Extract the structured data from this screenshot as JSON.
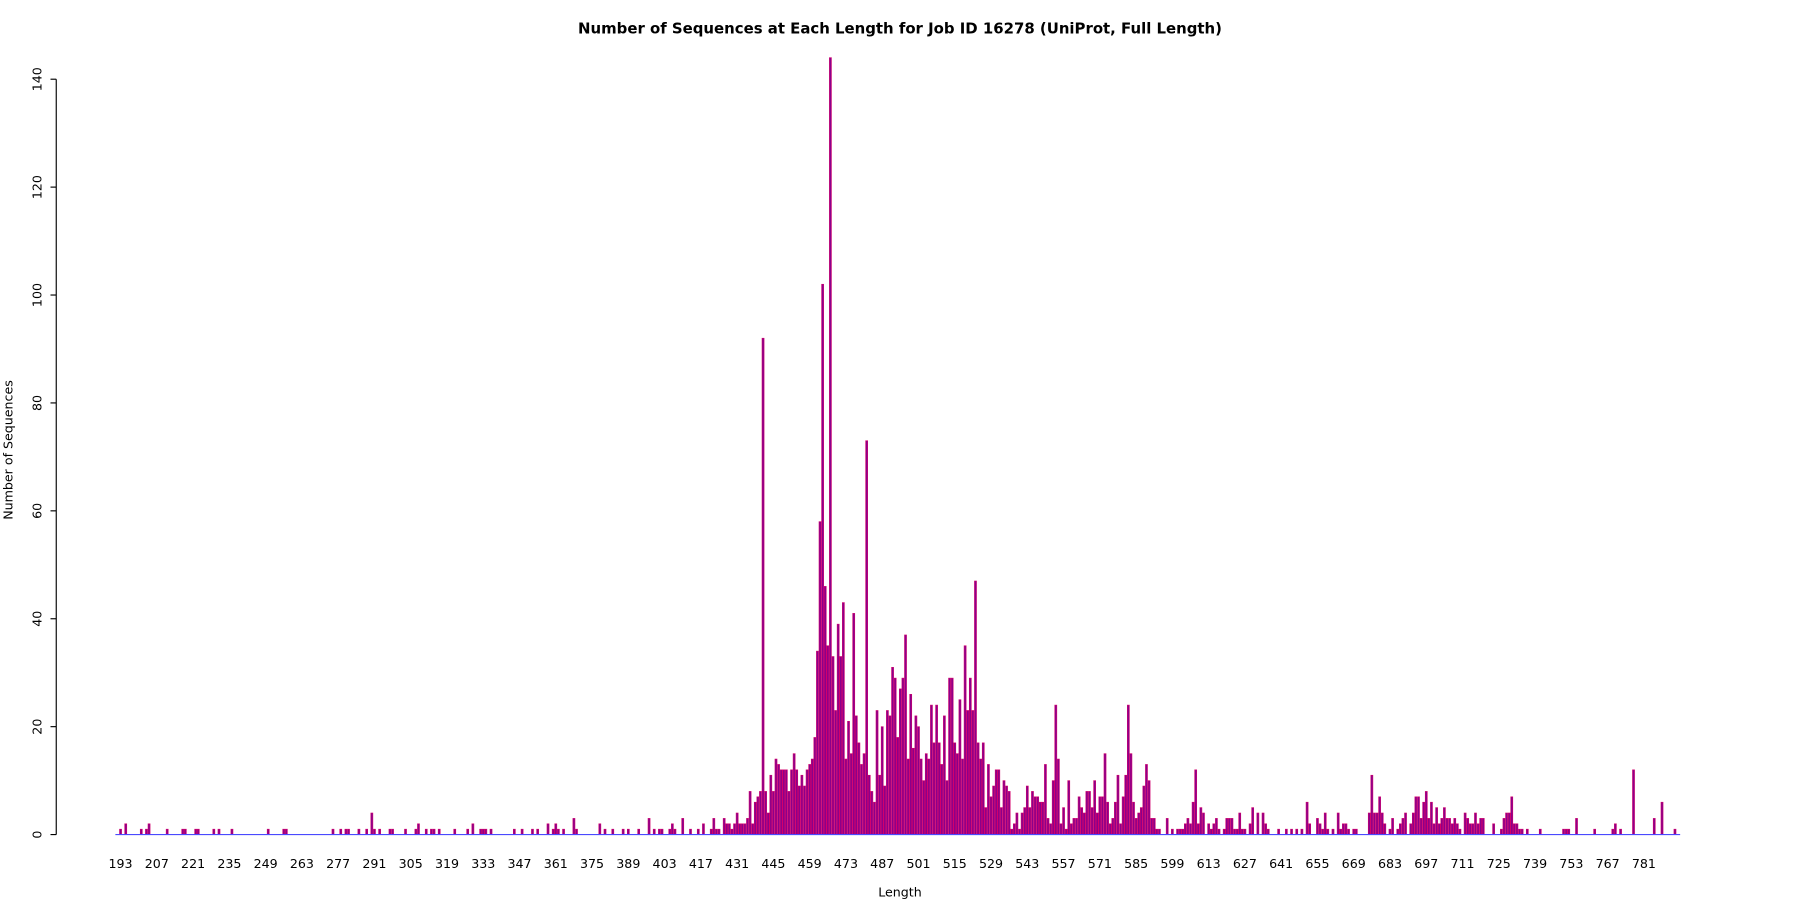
{
  "chart_data": {
    "type": "bar",
    "title": "Number of Sequences at Each Length for Job ID 16278 (UniProt, Full Length)",
    "x_label": "Length",
    "y_label": "Number of Sequences",
    "color": "#8b008b",
    "edgecolor": "#d4006a",
    "baseline_color": "#4a4aff",
    "xlim": [
      191,
      795
    ],
    "ylim": [
      0,
      140
    ],
    "xticks": [
      193,
      207,
      221,
      235,
      249,
      263,
      277,
      291,
      305,
      319,
      333,
      347,
      361,
      375,
      389,
      403,
      417,
      431,
      445,
      459,
      473,
      487,
      501,
      515,
      529,
      543,
      557,
      571,
      585,
      599,
      613,
      627,
      641,
      655,
      669,
      683,
      697,
      711,
      725,
      739,
      753,
      767,
      781
    ],
    "yticks": [
      0,
      20,
      40,
      60,
      80,
      100,
      120,
      140
    ],
    "x": [
      193,
      195,
      201,
      203,
      204,
      211,
      217,
      218,
      222,
      223,
      229,
      231,
      236,
      250,
      256,
      257,
      275,
      278,
      280,
      281,
      285,
      288,
      290,
      291,
      293,
      297,
      298,
      303,
      307,
      308,
      311,
      313,
      314,
      316,
      322,
      327,
      329,
      332,
      333,
      334,
      336,
      345,
      348,
      352,
      354,
      358,
      360,
      361,
      362,
      364,
      368,
      369,
      378,
      380,
      383,
      387,
      389,
      393,
      397,
      399,
      401,
      402,
      405,
      406,
      407,
      410,
      413,
      416,
      418,
      421,
      422,
      423,
      424,
      426,
      427,
      428,
      429,
      430,
      431,
      432,
      433,
      434,
      435,
      436,
      437,
      438,
      439,
      440,
      441,
      442,
      443,
      444,
      445,
      446,
      447,
      448,
      449,
      450,
      451,
      452,
      453,
      454,
      455,
      456,
      457,
      458,
      459,
      460,
      461,
      462,
      463,
      464,
      465,
      466,
      467,
      468,
      469,
      470,
      471,
      472,
      473,
      474,
      475,
      476,
      477,
      478,
      479,
      480,
      481,
      482,
      483,
      484,
      485,
      486,
      487,
      488,
      489,
      490,
      491,
      492,
      493,
      494,
      495,
      496,
      497,
      498,
      499,
      500,
      501,
      502,
      503,
      504,
      505,
      506,
      507,
      508,
      509,
      510,
      511,
      512,
      513,
      514,
      515,
      516,
      517,
      518,
      519,
      520,
      521,
      522,
      523,
      524,
      525,
      526,
      527,
      528,
      529,
      530,
      531,
      532,
      533,
      534,
      535,
      536,
      537,
      538,
      539,
      540,
      541,
      542,
      543,
      544,
      545,
      546,
      547,
      548,
      549,
      550,
      551,
      552,
      553,
      554,
      555,
      556,
      557,
      558,
      559,
      560,
      561,
      562,
      563,
      564,
      565,
      566,
      567,
      568,
      569,
      570,
      571,
      572,
      573,
      574,
      575,
      576,
      577,
      578,
      579,
      580,
      581,
      582,
      583,
      584,
      585,
      586,
      587,
      588,
      589,
      590,
      591,
      592,
      593,
      594,
      597,
      599,
      601,
      602,
      603,
      604,
      605,
      606,
      607,
      608,
      609,
      610,
      611,
      613,
      614,
      615,
      616,
      617,
      619,
      620,
      621,
      622,
      623,
      624,
      625,
      626,
      627,
      629,
      630,
      632,
      634,
      635,
      636,
      640,
      643,
      645,
      647,
      649,
      651,
      652,
      655,
      656,
      657,
      658,
      659,
      661,
      663,
      664,
      665,
      666,
      667,
      669,
      670,
      675,
      676,
      677,
      678,
      679,
      680,
      681,
      683,
      684,
      686,
      687,
      688,
      689,
      691,
      692,
      693,
      694,
      695,
      696,
      697,
      698,
      699,
      700,
      701,
      702,
      703,
      704,
      705,
      706,
      707,
      708,
      709,
      710,
      712,
      713,
      714,
      715,
      716,
      717,
      718,
      719,
      723,
      726,
      727,
      728,
      729,
      730,
      731,
      732,
      733,
      734,
      736,
      741,
      750,
      751,
      752,
      755,
      762,
      769,
      770,
      772,
      777,
      785,
      788,
      793
    ],
    "values": [
      1,
      2,
      1,
      1,
      2,
      1,
      1,
      1,
      1,
      1,
      1,
      1,
      1,
      1,
      1,
      1,
      1,
      1,
      1,
      1,
      1,
      1,
      4,
      1,
      1,
      1,
      1,
      1,
      1,
      2,
      1,
      1,
      1,
      1,
      1,
      1,
      2,
      1,
      1,
      1,
      1,
      1,
      1,
      1,
      1,
      2,
      1,
      2,
      1,
      1,
      3,
      1,
      2,
      1,
      1,
      1,
      1,
      1,
      3,
      1,
      1,
      1,
      1,
      2,
      1,
      3,
      1,
      1,
      2,
      1,
      3,
      1,
      1,
      3,
      2,
      2,
      1,
      2,
      4,
      2,
      2,
      2,
      3,
      8,
      2,
      6,
      7,
      8,
      92,
      8,
      4,
      11,
      8,
      14,
      13,
      12,
      12,
      12,
      8,
      12,
      15,
      12,
      9,
      11,
      9,
      12,
      13,
      14,
      18,
      34,
      58,
      102,
      46,
      35,
      144,
      33,
      23,
      39,
      33,
      43,
      14,
      21,
      15,
      41,
      22,
      17,
      13,
      15,
      73,
      11,
      8,
      6,
      23,
      11,
      20,
      9,
      23,
      22,
      31,
      29,
      18,
      27,
      29,
      37,
      14,
      26,
      16,
      22,
      20,
      14,
      10,
      15,
      14,
      24,
      17,
      24,
      17,
      13,
      22,
      10,
      29,
      29,
      17,
      15,
      25,
      14,
      35,
      23,
      29,
      23,
      47,
      17,
      14,
      17,
      5,
      13,
      7,
      9,
      12,
      12,
      5,
      10,
      9,
      8,
      1,
      2,
      4,
      1,
      4,
      5,
      9,
      5,
      8,
      7,
      7,
      6,
      6,
      13,
      3,
      2,
      10,
      24,
      14,
      2,
      5,
      1,
      10,
      2,
      3,
      3,
      7,
      5,
      4,
      8,
      8,
      5,
      10,
      4,
      7,
      7,
      15,
      6,
      2,
      3,
      6,
      11,
      2,
      7,
      11,
      24,
      15,
      6,
      3,
      4,
      5,
      9,
      13,
      10,
      3,
      3,
      1,
      1,
      3,
      1,
      1,
      1,
      1,
      2,
      3,
      2,
      6,
      12,
      2,
      5,
      4,
      2,
      1,
      2,
      3,
      1,
      1,
      3,
      3,
      3,
      1,
      1,
      4,
      1,
      1,
      2,
      5,
      4,
      4,
      2,
      1,
      1,
      1,
      1,
      1,
      1,
      6,
      2,
      3,
      2,
      1,
      4,
      1,
      1,
      4,
      1,
      2,
      2,
      1,
      1,
      1,
      4,
      11,
      4,
      4,
      7,
      4,
      2,
      1,
      3,
      1,
      2,
      3,
      4,
      2,
      4,
      7,
      7,
      3,
      6,
      8,
      3,
      6,
      2,
      5,
      2,
      3,
      5,
      3,
      3,
      2,
      3,
      2,
      1,
      4,
      3,
      2,
      2,
      4,
      2,
      3,
      3,
      2,
      1,
      3,
      4,
      4,
      7,
      2,
      2,
      1,
      1,
      1,
      1,
      1,
      1,
      1,
      3,
      1,
      1,
      2,
      1,
      12,
      3,
      6,
      1
    ]
  }
}
